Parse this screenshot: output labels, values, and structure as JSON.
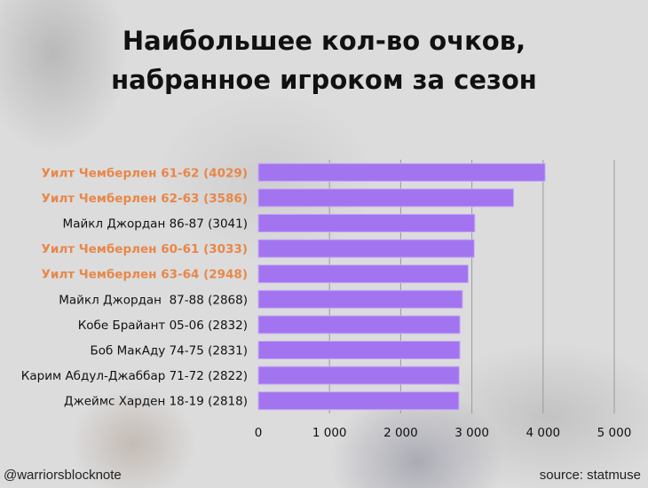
{
  "chart_data": {
    "type": "bar",
    "orientation": "horizontal",
    "title_lines": [
      "Наибольшее кол-во очков,",
      "набранное игроком за сезон"
    ],
    "categories": [
      "Уилт Чемберлен 61-62 (4029)",
      "Уилт Чемберлен 62-63 (3586)",
      "Майкл Джордан 86-87 (3041)",
      "Уилт Чемберлен 60-61 (3033)",
      "Уилт Чемберлен 63-64 (2948)",
      "Майкл Джордан  87-88 (2868)",
      "Кобе Брайант 05-06 (2832)",
      "Боб МакАду 74-75 (2831)",
      "Карим Абдул-Джаббар 71-72 (2822)",
      "Джеймс Харден 18-19 (2818)"
    ],
    "values": [
      4029,
      3586,
      3041,
      3033,
      2948,
      2868,
      2832,
      2831,
      2822,
      2818
    ],
    "highlighted": [
      true,
      true,
      false,
      true,
      true,
      false,
      false,
      false,
      false,
      false
    ],
    "xlim": [
      0,
      5000
    ],
    "x_ticks": [
      0,
      1000,
      2000,
      3000,
      4000,
      5000
    ],
    "x_tick_labels": [
      "0",
      "1 000",
      "2 000",
      "3 000",
      "4 000",
      "5 000"
    ],
    "grid": "vertical",
    "xlabel": "",
    "ylabel": "",
    "colors": {
      "bar": "#a374ef",
      "bar_edge": "#c9adf7",
      "highlight_text": "#e8874a",
      "text": "#111111",
      "grid": "#9a9a9a"
    }
  },
  "footer": {
    "handle": "@warriorsblocknote",
    "source": "source: statmuse"
  }
}
